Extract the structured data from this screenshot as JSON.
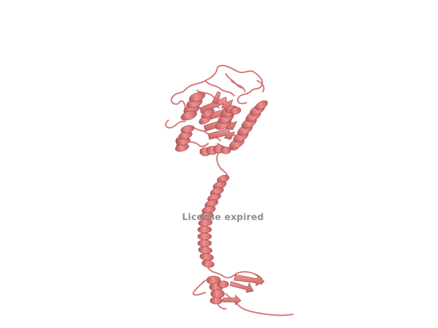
{
  "overlay": {
    "watermark_text": "License expired"
  },
  "colors": {
    "background": "#ffffff",
    "cartoon_fill": "#e98585",
    "cartoon_shade": "#c86464",
    "cartoon_dark": "#a94f4f",
    "watermark": "#8a8a8a"
  },
  "scene": {
    "subject": "protein-cartoon",
    "representation": "ribbon"
  }
}
